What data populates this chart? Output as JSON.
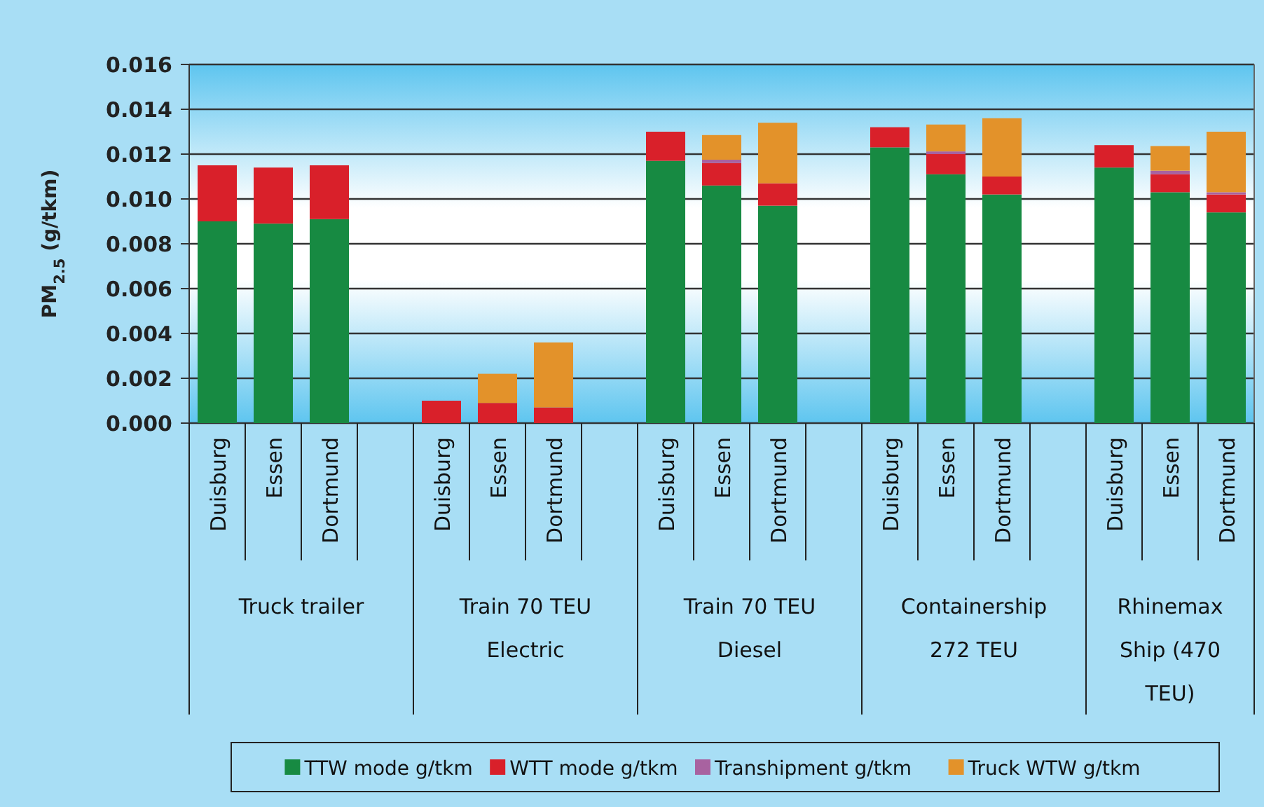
{
  "chart_data": {
    "type": "bar",
    "stacked": true,
    "ylabel": "PM$_{2.5}$ (g/tkm)",
    "categories": [
      "Duisburg",
      "Essen",
      "Dortmund",
      null,
      "Duisburg",
      "Essen",
      "Dortmund",
      null,
      "Duisburg",
      "Essen",
      "Dortmund",
      null,
      "Duisburg",
      "Essen",
      "Dortmund",
      null,
      "Duisburg",
      "Essen",
      "Dortmund"
    ],
    "series": [
      {
        "name": "TTW mode g/tkm",
        "color": "#178a42",
        "values": [
          0.009,
          0.0089,
          0.0091,
          null,
          0,
          0,
          0,
          null,
          0.0117,
          0.0106,
          0.0097,
          null,
          0.0123,
          0.0111,
          0.0102,
          null,
          0.0114,
          0.0103,
          0.0094
        ]
      },
      {
        "name": "WTT mode g/tkm",
        "color": "#d9202a",
        "values": [
          0.0025,
          0.0025,
          0.0024,
          null,
          0.001,
          0.0009,
          0.0007,
          null,
          0.0013,
          0.001,
          0.001,
          null,
          0.0009,
          0.0009,
          0.0008,
          null,
          0.001,
          0.0008,
          0.0008
        ]
      },
      {
        "name": "Transhipment g/tkm",
        "color": "#a862a0",
        "values": [
          0,
          0,
          0,
          null,
          0,
          0,
          0,
          null,
          0,
          0.00015,
          0,
          null,
          0,
          0.00012,
          0,
          null,
          0,
          0.00016,
          0.0001
        ]
      },
      {
        "name": "Truck WTW g/tkm",
        "color": "#e3922a",
        "values": [
          0,
          0,
          0,
          null,
          0,
          0.0013,
          0.0029,
          null,
          0,
          0.0011,
          0.0027,
          null,
          0,
          0.0012,
          0.0026,
          null,
          0,
          0.0011,
          0.0027
        ]
      }
    ],
    "annotations": [
      "Truck trailer",
      "Train 70 TEU Electric",
      "Train 70 TEU Diesel",
      "Containership 272 TEU",
      "Rhinemax Ship (470 TEU)"
    ],
    "ylim": [
      0,
      0.016
    ],
    "yticks": [
      {
        "value": 0,
        "label": "0.000"
      },
      {
        "value": 0.002,
        "label": "0.002"
      },
      {
        "value": 0.004,
        "label": "0.004"
      },
      {
        "value": 0.006,
        "label": "0.006"
      },
      {
        "value": 0.008,
        "label": "0.008"
      },
      {
        "value": 0.01,
        "label": "0.010"
      },
      {
        "value": 0.012,
        "label": "0.012"
      },
      {
        "value": 0.014,
        "label": "0.014"
      },
      {
        "value": 0.016,
        "label": "0.016"
      }
    ],
    "grid": "y",
    "legend": "bottom"
  }
}
